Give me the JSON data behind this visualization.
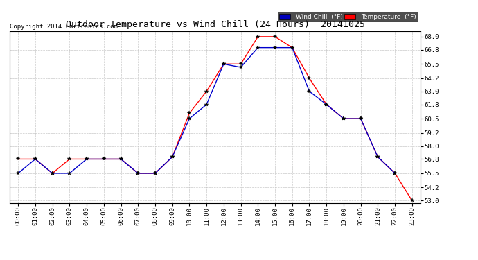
{
  "title": "Outdoor Temperature vs Wind Chill (24 Hours)  20141025",
  "copyright": "Copyright 2014 Cartronics.com",
  "hours": [
    "00:00",
    "01:00",
    "02:00",
    "03:00",
    "04:00",
    "05:00",
    "06:00",
    "07:00",
    "08:00",
    "09:00",
    "10:00",
    "11:00",
    "12:00",
    "13:00",
    "14:00",
    "15:00",
    "16:00",
    "17:00",
    "18:00",
    "19:00",
    "20:00",
    "21:00",
    "22:00",
    "23:00"
  ],
  "temperature": [
    56.8,
    56.8,
    55.5,
    56.8,
    56.8,
    56.8,
    56.8,
    55.5,
    55.5,
    57.0,
    61.0,
    63.0,
    65.5,
    65.5,
    68.0,
    68.0,
    67.0,
    64.2,
    61.8,
    60.5,
    60.5,
    57.0,
    55.5,
    53.0
  ],
  "wind_chill": [
    55.5,
    56.8,
    55.5,
    55.5,
    56.8,
    56.8,
    56.8,
    55.5,
    55.5,
    57.0,
    60.5,
    61.8,
    65.5,
    65.2,
    67.0,
    67.0,
    67.0,
    63.0,
    61.8,
    60.5,
    60.5,
    57.0,
    55.5,
    null
  ],
  "ylim_min": 53.0,
  "ylim_max": 68.0,
  "yticks": [
    53.0,
    54.2,
    55.5,
    56.8,
    58.0,
    59.2,
    60.5,
    61.8,
    63.0,
    64.2,
    65.5,
    66.8,
    68.0
  ],
  "temp_color": "#ff0000",
  "wind_color": "#0000cc",
  "background_color": "#ffffff",
  "grid_color": "#bbbbbb",
  "legend_wind_bg": "#0000bb",
  "legend_temp_bg": "#ff0000",
  "legend_text_color": "#ffffff"
}
